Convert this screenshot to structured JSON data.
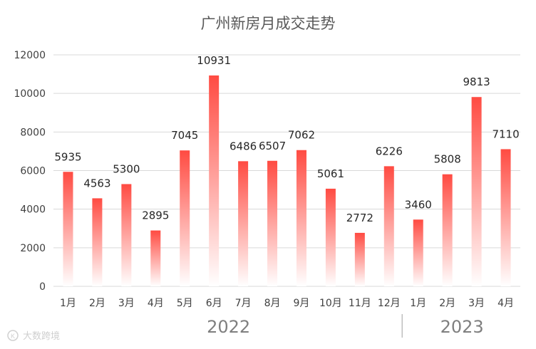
{
  "chart_data": {
    "type": "bar",
    "title": "广州新房月成交走势",
    "categories": [
      "1月",
      "2月",
      "3月",
      "4月",
      "5月",
      "6月",
      "7月",
      "8月",
      "9月",
      "10月",
      "11月",
      "12月",
      "1月",
      "2月",
      "3月",
      "4月"
    ],
    "values": [
      5935,
      4563,
      5300,
      2895,
      7045,
      10931,
      6486,
      6507,
      7062,
      5061,
      2772,
      6226,
      3460,
      5808,
      9813,
      7110
    ],
    "groups": [
      {
        "label": "2022",
        "count": 12
      },
      {
        "label": "2023",
        "count": 4
      }
    ],
    "ylim": [
      0,
      12000
    ],
    "yticks": [
      0,
      2000,
      4000,
      6000,
      8000,
      10000,
      12000
    ],
    "grid": true,
    "legend": "none",
    "xlabel": "",
    "ylabel": "",
    "colors": {
      "bar_top": "#ff4b42",
      "bar_bottom": "#ffffff",
      "grid": "#d9d9d9",
      "separator": "#bfbfbf"
    }
  },
  "watermark": {
    "text": "大数跨境",
    "icon": "kr-logo-icon"
  }
}
